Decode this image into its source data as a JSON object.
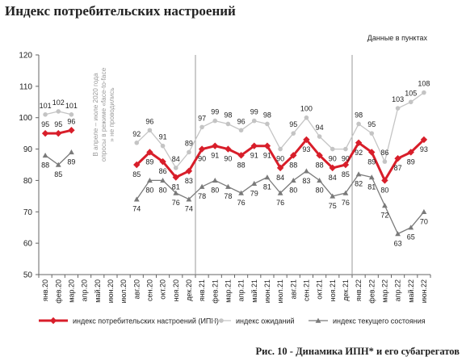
{
  "title": "Индекс потребительских настроений",
  "caption": "Рис. 10 - Динамика ИПН* и его субагрегатов",
  "colors": {
    "ipn": "#d81e2a",
    "expect": "#c4c4c4",
    "current": "#7a7a7a",
    "axis": "#666666",
    "divider": "#9a9a9a"
  },
  "chart_data": {
    "type": "line",
    "units_note": "Данные в пунктах",
    "ylim": [
      50,
      120
    ],
    "yticks": [
      50,
      60,
      70,
      80,
      90,
      100,
      110,
      120
    ],
    "categories": [
      "янв.20",
      "фев.20",
      "мар.20",
      "апр.20",
      "май.20",
      "июн.20",
      "июл.20",
      "авг.20",
      "сен.20",
      "окт.20",
      "ноя.20",
      "дек.20",
      "янв.21",
      "фев.21",
      "мар.21",
      "апр.21",
      "май.21",
      "июн.21",
      "июл.21",
      "авг.21",
      "сен.21",
      "окт.21",
      "ноя.21",
      "дек.21",
      "янв.22",
      "фев.22",
      "мар.22",
      "апр.22",
      "май.22",
      "июн.22"
    ],
    "gap_note": "В апреле – июле 2020 года опросы в режиме «face-to-face» не проводились",
    "series": [
      {
        "name": "индекс потребительских настроений (ИПН)",
        "key": "ipn",
        "values": [
          95,
          95,
          96,
          null,
          null,
          null,
          null,
          85,
          89,
          86,
          81,
          83,
          90,
          91,
          90,
          88,
          91,
          91,
          84,
          88,
          93,
          88,
          84,
          85,
          92,
          89,
          80,
          87,
          89,
          93
        ]
      },
      {
        "name": "индекс ожиданий",
        "key": "expect",
        "values": [
          101,
          102,
          101,
          null,
          null,
          null,
          null,
          92,
          96,
          91,
          84,
          89,
          97,
          99,
          98,
          96,
          99,
          98,
          90,
          95,
          100,
          94,
          90,
          90,
          98,
          95,
          86,
          103,
          105,
          108
        ]
      },
      {
        "name": "индекс текущего состояния",
        "key": "current",
        "values": [
          88,
          85,
          89,
          null,
          null,
          null,
          null,
          74,
          80,
          80,
          76,
          74,
          78,
          80,
          78,
          76,
          79,
          81,
          76,
          80,
          83,
          80,
          75,
          76,
          82,
          81,
          72,
          63,
          65,
          70
        ]
      }
    ],
    "label_positions": {
      "ipn": [
        "above",
        "above",
        "above",
        null,
        null,
        null,
        null,
        "below",
        "below",
        "below",
        "below",
        "below",
        "below",
        "below",
        "below",
        "below",
        "below",
        "below",
        "below",
        "below",
        "below",
        "below",
        "below",
        "below",
        "below",
        "below",
        "below",
        "below",
        "below",
        "below"
      ],
      "expect": [
        "above",
        "above",
        "above",
        null,
        null,
        null,
        null,
        "above",
        "above",
        "above",
        "above",
        "above",
        "above",
        "above",
        "above",
        "above",
        "above",
        "above",
        "below",
        "above",
        "above",
        "above",
        "below",
        "below",
        "above",
        "above",
        "above",
        "above",
        "above",
        "above"
      ],
      "current": [
        "below",
        "below",
        "below",
        null,
        null,
        null,
        null,
        "below",
        "below",
        "below",
        "below",
        "below",
        "below",
        "below",
        "below",
        "below",
        "below",
        "below",
        "below",
        "below",
        "below",
        "below",
        "below",
        "below",
        "below",
        "below",
        "below",
        "below",
        "below",
        "below"
      ]
    },
    "year_dividers_after": [
      "дек.20",
      "дек.21"
    ]
  }
}
